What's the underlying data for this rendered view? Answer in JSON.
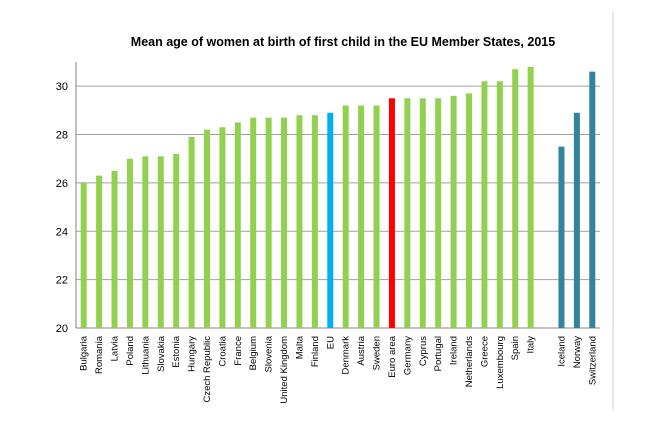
{
  "chart_data": {
    "type": "bar",
    "title": "Mean age of women at birth of first child in the EU Member States, 2015",
    "xlabel": "",
    "ylabel": "",
    "ylim": [
      20,
      31
    ],
    "yticks": [
      20,
      22,
      24,
      26,
      28,
      30
    ],
    "grid": true,
    "legend": "none",
    "categories": [
      "Bulgaria",
      "Romania",
      "Latvia",
      "Poland",
      "Lithuania",
      "Slovakia",
      "Estonia",
      "Hungary",
      "Czech Republic",
      "Croatia",
      "France",
      "Belgium",
      "Slovenia",
      "United Kingdom",
      "Malta",
      "Finland",
      "EU",
      "Denmark",
      "Austria",
      "Sweden",
      "Euro area",
      "Germany",
      "Cyprus",
      "Portugal",
      "Ireland",
      "Netherlands",
      "Greece",
      "Luxembourg",
      "Spain",
      "Italy",
      "Iceland",
      "Norway",
      "Switzerland"
    ],
    "values": [
      26.0,
      26.3,
      26.5,
      27.0,
      27.1,
      27.1,
      27.2,
      27.9,
      28.2,
      28.3,
      28.5,
      28.7,
      28.7,
      28.7,
      28.8,
      28.8,
      28.9,
      29.2,
      29.2,
      29.2,
      29.5,
      29.5,
      29.5,
      29.5,
      29.6,
      29.7,
      30.2,
      30.2,
      30.7,
      30.8,
      27.5,
      28.9,
      30.6
    ],
    "colors": {
      "member_state": "#92d050",
      "EU": "#00b0f0",
      "Euro area": "#ff0000",
      "non_member": "#31849b"
    },
    "non_member_states": [
      "Iceland",
      "Norway",
      "Switzerland"
    ]
  }
}
